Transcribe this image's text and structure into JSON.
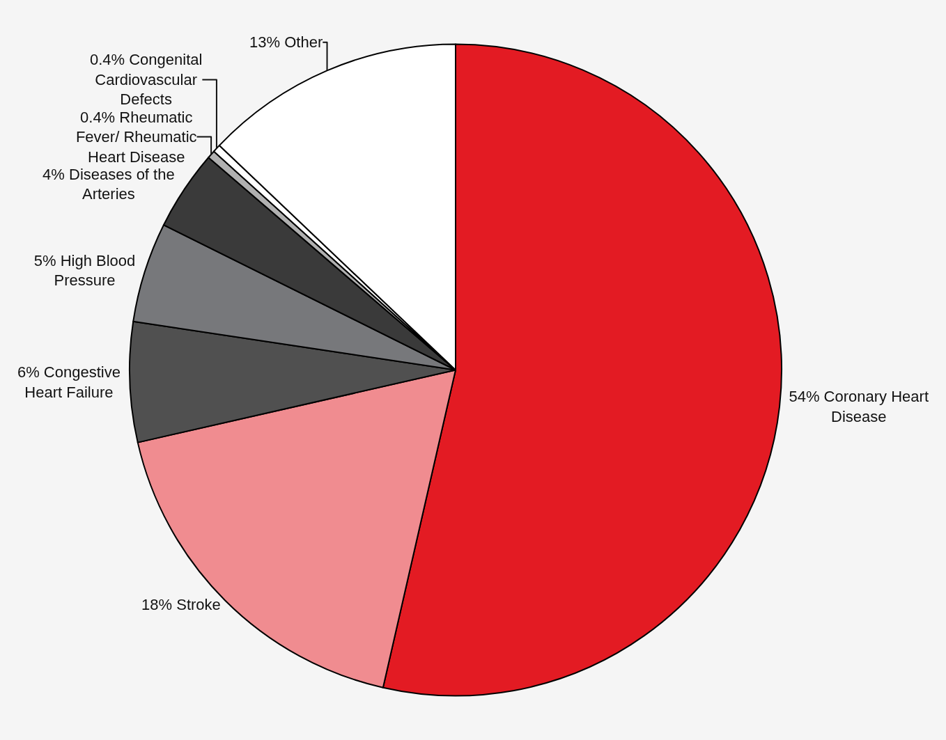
{
  "chart_data": {
    "type": "pie",
    "categories": [
      "Coronary Heart Disease",
      "Stroke",
      "Congestive Heart Failure",
      "High Blood Pressure",
      "Diseases of the Arteries",
      "Rheumatic Fever/ Rheumatic Heart Disease",
      "Congenital Cardiovascular Defects",
      "Other"
    ],
    "values": [
      54,
      18,
      6,
      5,
      4,
      0.4,
      0.4,
      13
    ],
    "value_labels": [
      "54%",
      "18%",
      "6%",
      "5%",
      "4%",
      "0.4%",
      "0.4%",
      "13%"
    ],
    "colors": [
      "#e31b23",
      "#f08c90",
      "#505050",
      "#77787b",
      "#3a3a3a",
      "#b0b0b0",
      "#ffffff",
      "#ffffff"
    ],
    "legend": false
  }
}
